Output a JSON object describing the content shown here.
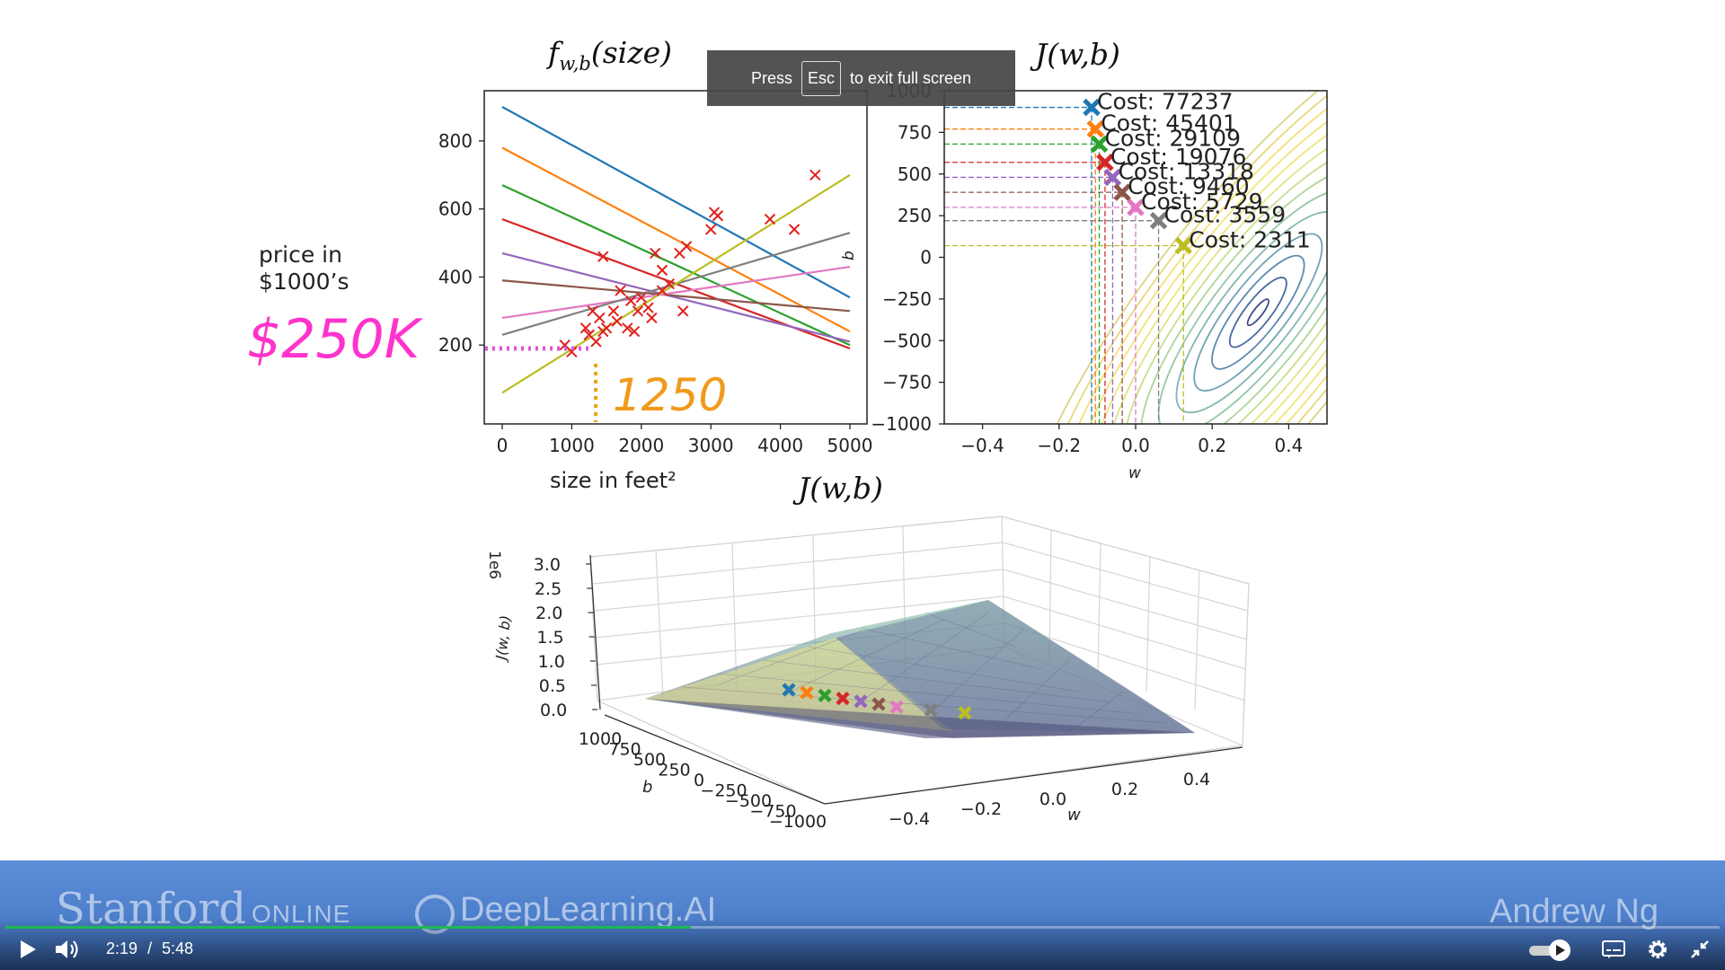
{
  "overlay": {
    "press": "Press",
    "key": "Esc",
    "suffix": "to exit full screen"
  },
  "slide": {
    "left_plot_title": "f",
    "left_plot_title_sub": "w,b",
    "left_plot_title_arg": "(size)",
    "contour_title": "J(w,b)",
    "surface_title": "J(w,b)",
    "price_label_line1": "price in",
    "price_label_line2": "$1000’s",
    "annotation_price": "$250K",
    "annotation_size": "1250",
    "xlabel_left": "size in feet²",
    "ylabel_contour": "b",
    "xlabel_contour": "w",
    "surface_zlabel": "J(w, b)",
    "surface_zscale": "1e6",
    "surface_blabel": "b",
    "surface_wlabel": "w"
  },
  "chart_data": [
    {
      "type": "scatter",
      "title": "f_w,b(size)",
      "xlabel": "size in feet²",
      "ylabel": "price in $1000’s",
      "xlim": [
        0,
        5000
      ],
      "ylim": [
        0,
        900
      ],
      "xticks": [
        "0",
        "1000",
        "2000",
        "3000",
        "4000",
        "5000"
      ],
      "yticks": [
        "200",
        "400",
        "600",
        "800"
      ],
      "points": [
        [
          900,
          200
        ],
        [
          1000,
          180
        ],
        [
          1200,
          250
        ],
        [
          1250,
          230
        ],
        [
          1300,
          300
        ],
        [
          1350,
          210
        ],
        [
          1400,
          280
        ],
        [
          1450,
          240
        ],
        [
          1500,
          250
        ],
        [
          1600,
          300
        ],
        [
          1650,
          270
        ],
        [
          1700,
          360
        ],
        [
          1800,
          250
        ],
        [
          1850,
          330
        ],
        [
          1900,
          240
        ],
        [
          1950,
          300
        ],
        [
          2000,
          340
        ],
        [
          2100,
          310
        ],
        [
          2150,
          280
        ],
        [
          2200,
          470
        ],
        [
          2300,
          420
        ],
        [
          2300,
          360
        ],
        [
          2400,
          380
        ],
        [
          2550,
          470
        ],
        [
          2600,
          300
        ],
        [
          2650,
          490
        ],
        [
          3000,
          540
        ],
        [
          3050,
          590
        ],
        [
          3100,
          580
        ],
        [
          3850,
          570
        ],
        [
          4200,
          540
        ],
        [
          4500,
          700
        ],
        [
          1450,
          460
        ]
      ],
      "series": [
        {
          "color": "#1f77b4",
          "x": [
            0,
            5000
          ],
          "y": [
            900,
            340
          ]
        },
        {
          "color": "#ff7f0e",
          "x": [
            0,
            5000
          ],
          "y": [
            780,
            240
          ]
        },
        {
          "color": "#2ca02c",
          "x": [
            0,
            5000
          ],
          "y": [
            670,
            200
          ]
        },
        {
          "color": "#d62728",
          "x": [
            0,
            5000
          ],
          "y": [
            570,
            190
          ]
        },
        {
          "color": "#9467bd",
          "x": [
            0,
            5000
          ],
          "y": [
            470,
            210
          ]
        },
        {
          "color": "#8c564b",
          "x": [
            0,
            5000
          ],
          "y": [
            390,
            300
          ]
        },
        {
          "color": "#e377c2",
          "x": [
            0,
            5000
          ],
          "y": [
            280,
            430
          ]
        },
        {
          "color": "#7f7f7f",
          "x": [
            0,
            5000
          ],
          "y": [
            230,
            530
          ]
        },
        {
          "color": "#bcbd22",
          "x": [
            0,
            5000
          ],
          "y": [
            60,
            700
          ]
        }
      ]
    },
    {
      "type": "contour",
      "title": "J(w,b)",
      "xlabel": "w",
      "ylabel": "b",
      "xlim": [
        -0.5,
        0.5
      ],
      "ylim": [
        -1000,
        1000
      ],
      "xticks": [
        "−0.4",
        "−0.2",
        "0.0",
        "0.2",
        "0.4"
      ],
      "yticks": [
        "1000",
        "750",
        "500",
        "250",
        "0",
        "−250",
        "−500",
        "−750",
        "−1000"
      ],
      "steps": [
        {
          "w": -0.115,
          "b": 900,
          "cost_label": "Cost: 77237",
          "color": "#1f77b4"
        },
        {
          "w": -0.105,
          "b": 770,
          "cost_label": "Cost: 45401",
          "color": "#ff7f0e"
        },
        {
          "w": -0.095,
          "b": 680,
          "cost_label": "Cost: 29109",
          "color": "#2ca02c"
        },
        {
          "w": -0.08,
          "b": 570,
          "cost_label": "Cost: 19076",
          "color": "#d62728"
        },
        {
          "w": -0.06,
          "b": 480,
          "cost_label": "Cost: 13318",
          "color": "#9467bd"
        },
        {
          "w": -0.035,
          "b": 390,
          "cost_label": "Cost: 9460",
          "color": "#8c564b"
        },
        {
          "w": 0.0,
          "b": 300,
          "cost_label": "Cost: 5729",
          "color": "#e377c2"
        },
        {
          "w": 0.06,
          "b": 220,
          "cost_label": "Cost: 3559",
          "color": "#7f7f7f"
        },
        {
          "w": 0.125,
          "b": 70,
          "cost_label": "Cost: 2311",
          "color": "#bcbd22"
        }
      ]
    },
    {
      "type": "surface3d",
      "title": "J(w,b)",
      "zlabel": "J(w, b)",
      "zscale": "1e6",
      "zticks": [
        "3.0",
        "2.5",
        "2.0",
        "1.5",
        "1.0",
        "0.5",
        "0.0"
      ],
      "bticks": [
        "1000",
        "750",
        "500",
        "250",
        "0",
        "−250",
        "−500",
        "−750",
        "−1000"
      ],
      "wticks": [
        "−0.4",
        "−0.2",
        "0.0",
        "0.2",
        "0.4"
      ]
    }
  ],
  "player": {
    "brand_left": "Stanford",
    "brand_left_sub": "ONLINE",
    "brand_mid": "DeepLearning.AI",
    "brand_right": "Andrew Ng",
    "time_current": "2:19",
    "time_sep": "/",
    "time_total": "5:48",
    "progress": 0.4,
    "accent_color": "#1db954"
  }
}
